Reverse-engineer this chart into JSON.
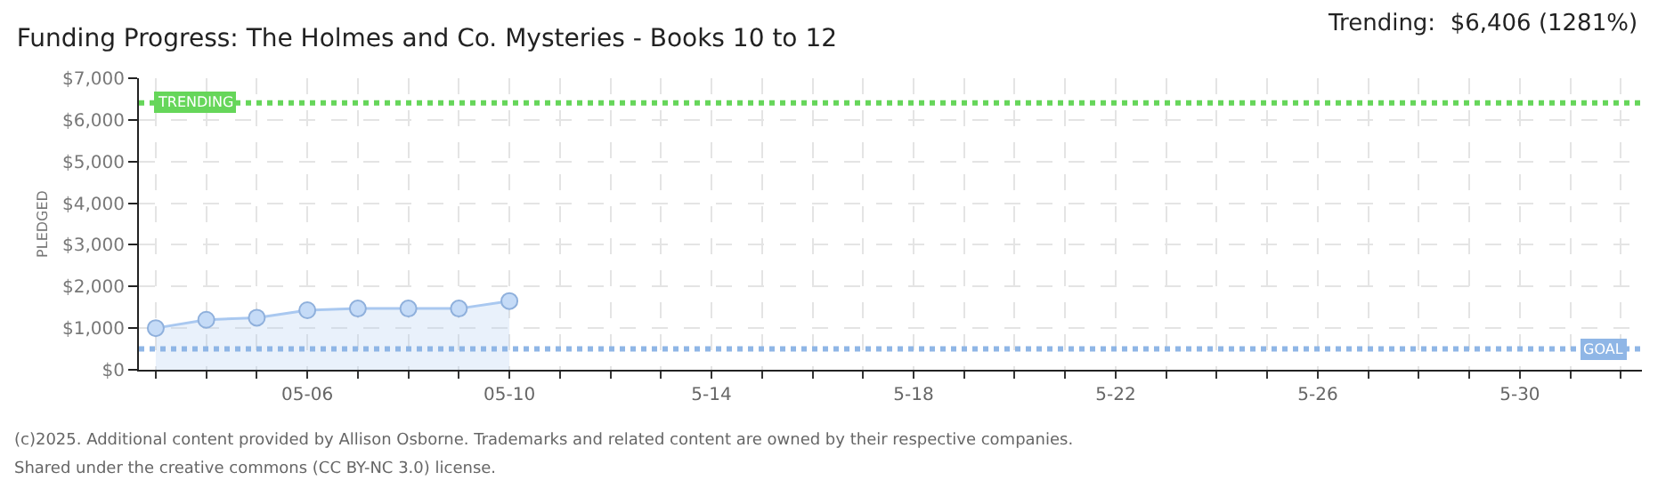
{
  "chart_data": {
    "type": "area",
    "title": "Funding Progress: The Holmes and Co. Mysteries - Books 10 to 12",
    "ylabel": "PLEDGED",
    "x": [
      "--05-03",
      "--05-04",
      "--05-05",
      "--05-06",
      "--05-07",
      "--05-08",
      "--05-09",
      "--05-10"
    ],
    "series": [
      {
        "color": "#a9c8f0",
        "values": [
          1000,
          1200,
          1250,
          1430,
          1470,
          1470,
          1470,
          1650
        ]
      }
    ],
    "marker": "circle",
    "xlim": [
      "--05-02T16:00",
      "--06-01T10:00"
    ],
    "xticks": [
      {
        "value": "--05-03",
        "label": null
      },
      {
        "value": "--05-04",
        "label": null
      },
      {
        "value": "--05-05",
        "label": null
      },
      {
        "value": "--05-06",
        "label": "05-06"
      },
      {
        "value": "--05-07",
        "label": null
      },
      {
        "value": "--05-08",
        "label": null
      },
      {
        "value": "--05-09",
        "label": null
      },
      {
        "value": "--05-10",
        "label": "05-10"
      },
      {
        "value": "--05-11",
        "label": null
      },
      {
        "value": "--05-12",
        "label": null
      },
      {
        "value": "--05-13",
        "label": null
      },
      {
        "value": "--05-14",
        "label": "5-14"
      },
      {
        "value": "--05-15",
        "label": null
      },
      {
        "value": "--05-16",
        "label": null
      },
      {
        "value": "--05-17",
        "label": null
      },
      {
        "value": "--05-18",
        "label": "5-18"
      },
      {
        "value": "--05-19",
        "label": null
      },
      {
        "value": "--05-20",
        "label": null
      },
      {
        "value": "--05-21",
        "label": null
      },
      {
        "value": "--05-22",
        "label": "5-22"
      },
      {
        "value": "--05-23",
        "label": null
      },
      {
        "value": "--05-24",
        "label": null
      },
      {
        "value": "--05-25",
        "label": null
      },
      {
        "value": "--05-26",
        "label": "5-26"
      },
      {
        "value": "--05-27",
        "label": null
      },
      {
        "value": "--05-28",
        "label": null
      },
      {
        "value": "--05-29",
        "label": null
      },
      {
        "value": "--05-30",
        "label": "5-30"
      },
      {
        "value": "--05-31",
        "label": null
      },
      {
        "value": "--06-01",
        "label": null
      }
    ],
    "ylim": [
      0,
      7000
    ],
    "yticks": [
      {
        "value": 0,
        "label": "$0"
      },
      {
        "value": 1000,
        "label": "$1,000"
      },
      {
        "value": 2000,
        "label": "$2,000"
      },
      {
        "value": 3000,
        "label": "$3,000"
      },
      {
        "value": 4000,
        "label": "$4,000"
      },
      {
        "value": 5000,
        "label": "$5,000"
      },
      {
        "value": 6000,
        "label": "$6,000"
      },
      {
        "value": 7000,
        "label": "$7,000"
      }
    ],
    "grid": true,
    "ref_lines": [
      {
        "axis": "y",
        "value": 6406,
        "label": "TRENDING",
        "color": "#66d65a",
        "line_style": "dotted"
      },
      {
        "axis": "y",
        "value": 500,
        "label": "GOAL",
        "color": "#8fb6e6",
        "line_style": "dotted"
      }
    ],
    "annotations": [
      "Trending:  $6,406 (1281%)",
      "(c)2025. Additional content provided by Allison Osborne. Trademarks and related content are owned by their respective companies.",
      "Shared under the creative commons (CC BY-NC 3.0) license."
    ]
  }
}
